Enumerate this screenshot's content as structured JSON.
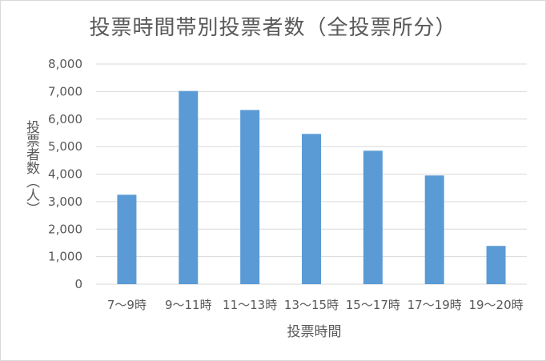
{
  "chart_data": {
    "type": "bar",
    "title": "投票時間帯別投票者数（全投票所分）",
    "xlabel": "投票時間",
    "ylabel": "投票者数（人）",
    "categories": [
      "7～9時",
      "9～11時",
      "11～13時",
      "13～15時",
      "15～17時",
      "17～19時",
      "19～20時"
    ],
    "values": [
      3250,
      7020,
      6330,
      5460,
      4850,
      3950,
      1390
    ],
    "ylim": [
      0,
      8000
    ],
    "yticks": [
      "0",
      "1,000",
      "2,000",
      "3,000",
      "4,000",
      "5,000",
      "6,000",
      "7,000",
      "8,000"
    ],
    "grid": true,
    "legend": "none",
    "bar_color": "#5b9bd5"
  }
}
